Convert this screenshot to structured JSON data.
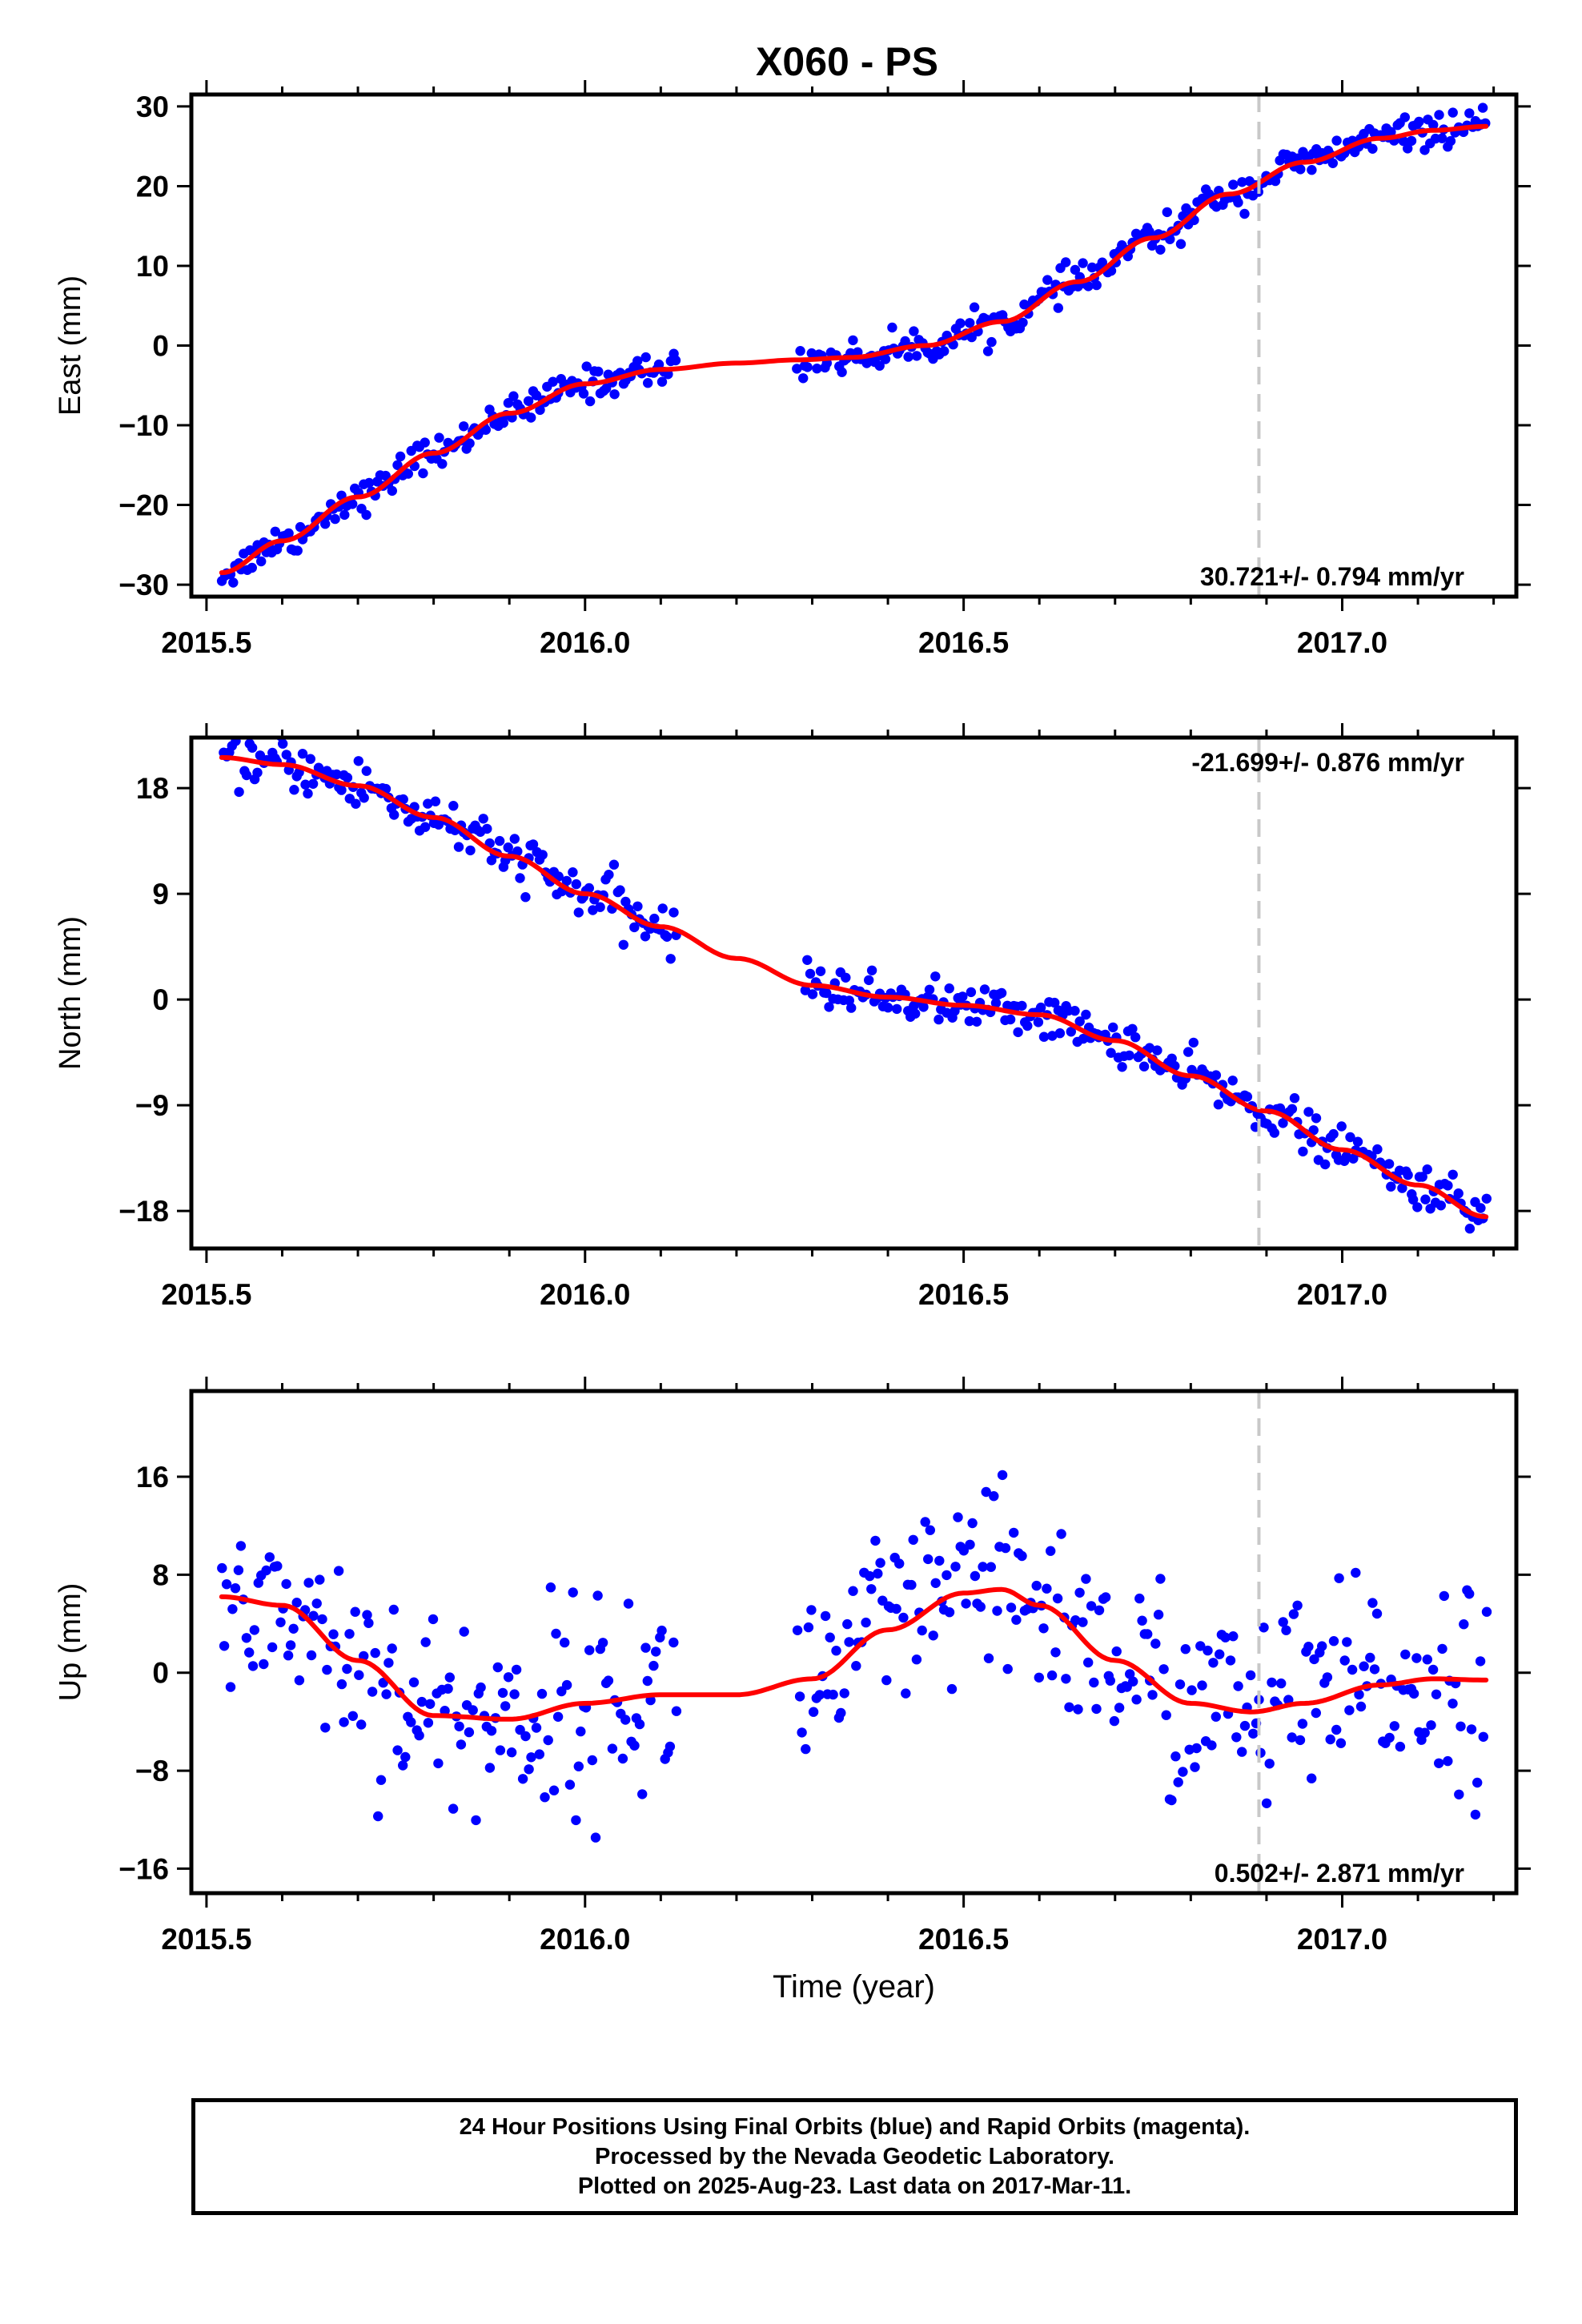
{
  "title": "X060 - PS",
  "colors": {
    "data": "#0000ff",
    "model": "#ff0000",
    "ref_line": "#c8c8c8"
  },
  "chart_data": [
    {
      "type": "scatter",
      "component": "east",
      "ylabel": "East (mm)",
      "xlabel": "",
      "xlim": [
        2015.48,
        2017.23
      ],
      "ylim": [
        -31.5,
        31.5
      ],
      "xticks": [
        2015.5,
        2016.0,
        2016.5,
        2017.0
      ],
      "xtick_labels": [
        "2015.5",
        "2016.0",
        "2016.5",
        "2017.0"
      ],
      "yticks": [
        -30,
        -20,
        -10,
        0,
        10,
        20,
        30
      ],
      "ytick_labels": [
        "−30",
        "−20",
        "−10",
        "0",
        "10",
        "20",
        "30"
      ],
      "ref_line_x": 2016.89,
      "rate_text": "30.721+/- 0.794 mm/yr",
      "rate_position": "bottom-right",
      "grid": false,
      "model_curve": {
        "x": [
          2015.52,
          2015.6,
          2015.7,
          2015.8,
          2015.9,
          2016.0,
          2016.1,
          2016.2,
          2016.28,
          2016.35,
          2016.45,
          2016.55,
          2016.65,
          2016.75,
          2016.85,
          2016.95,
          2017.05,
          2017.12,
          2017.19
        ],
        "y": [
          -28.5,
          -24.5,
          -19.0,
          -13.5,
          -8.5,
          -4.8,
          -3.0,
          -2.2,
          -1.8,
          -1.5,
          0.0,
          3.0,
          8.0,
          13.5,
          19.0,
          23.0,
          26.0,
          27.0,
          27.5
        ]
      },
      "data_segments": [
        {
          "x_range": [
            2015.52,
            2016.12
          ],
          "noise": 1.0
        },
        {
          "x_range": [
            2016.28,
            2017.19
          ],
          "noise": 1.0
        }
      ]
    },
    {
      "type": "scatter",
      "component": "north",
      "ylabel": "North (mm)",
      "xlabel": "",
      "xlim": [
        2015.48,
        2017.23
      ],
      "ylim": [
        -21.2,
        22.3
      ],
      "xticks": [
        2015.5,
        2016.0,
        2016.5,
        2017.0
      ],
      "xtick_labels": [
        "2015.5",
        "2016.0",
        "2016.5",
        "2017.0"
      ],
      "yticks": [
        -18,
        -9,
        0,
        9,
        18
      ],
      "ytick_labels": [
        "−18",
        "−9",
        "0",
        "9",
        "18"
      ],
      "ref_line_x": 2016.89,
      "rate_text": "-21.699+/- 0.876 mm/yr",
      "rate_position": "top-right",
      "grid": false,
      "model_curve": {
        "x": [
          2015.52,
          2015.6,
          2015.7,
          2015.8,
          2015.9,
          2016.0,
          2016.1,
          2016.2,
          2016.3,
          2016.4,
          2016.5,
          2016.6,
          2016.7,
          2016.8,
          2016.9,
          2017.0,
          2017.1,
          2017.19
        ],
        "y": [
          20.6,
          20.0,
          18.2,
          15.5,
          12.2,
          9.0,
          6.2,
          3.5,
          1.2,
          0.2,
          -0.5,
          -1.3,
          -3.5,
          -6.5,
          -9.5,
          -12.8,
          -15.8,
          -18.5
        ]
      },
      "data_segments": [
        {
          "x_range": [
            2015.52,
            2016.12
          ],
          "noise": 1.1
        },
        {
          "x_range": [
            2016.29,
            2017.19
          ],
          "noise": 0.9
        }
      ]
    },
    {
      "type": "scatter",
      "component": "up",
      "ylabel": "Up (mm)",
      "xlabel": "Time (year)",
      "xlim": [
        2015.48,
        2017.23
      ],
      "ylim": [
        -18,
        23
      ],
      "xticks": [
        2015.5,
        2016.0,
        2016.5,
        2017.0
      ],
      "xtick_labels": [
        "2015.5",
        "2016.0",
        "2016.5",
        "2017.0"
      ],
      "yticks": [
        -16,
        -8,
        0,
        8,
        16
      ],
      "ytick_labels": [
        "−16",
        "−8",
        "0",
        "8",
        "16"
      ],
      "ref_line_x": 2016.89,
      "rate_text": "0.502+/- 2.871 mm/yr",
      "rate_position": "bottom-right",
      "grid": false,
      "model_curve": {
        "x": [
          2015.52,
          2015.6,
          2015.7,
          2015.8,
          2015.9,
          2016.0,
          2016.1,
          2016.2,
          2016.3,
          2016.4,
          2016.5,
          2016.55,
          2016.6,
          2016.7,
          2016.8,
          2016.88,
          2016.95,
          2017.05,
          2017.12,
          2017.19
        ],
        "y": [
          6.2,
          5.5,
          1.0,
          -3.5,
          -3.8,
          -2.5,
          -1.8,
          -1.8,
          -0.5,
          3.5,
          6.5,
          6.8,
          5.5,
          1.0,
          -2.5,
          -3.2,
          -2.5,
          -1.0,
          -0.5,
          -0.6
        ]
      },
      "data_segments": [
        {
          "x_range": [
            2015.52,
            2016.12
          ],
          "noise": 4.2
        },
        {
          "x_range": [
            2016.28,
            2017.19
          ],
          "noise": 4.2
        }
      ]
    }
  ],
  "footer": {
    "line1": "24 Hour Positions Using Final Orbits (blue) and Rapid Orbits (magenta).",
    "line2": "Processed by the Nevada Geodetic Laboratory.",
    "line3": "Plotted on 2025-Aug-23. Last data on 2017-Mar-11."
  }
}
